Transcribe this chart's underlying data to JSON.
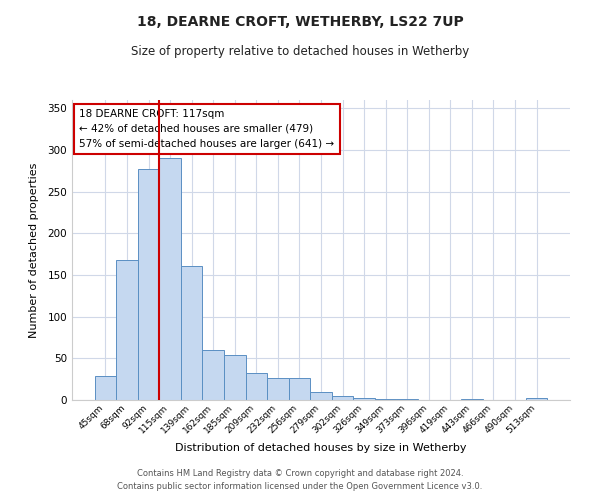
{
  "title": "18, DEARNE CROFT, WETHERBY, LS22 7UP",
  "subtitle": "Size of property relative to detached houses in Wetherby",
  "xlabel": "Distribution of detached houses by size in Wetherby",
  "ylabel": "Number of detached properties",
  "bar_labels": [
    "45sqm",
    "68sqm",
    "92sqm",
    "115sqm",
    "139sqm",
    "162sqm",
    "185sqm",
    "209sqm",
    "232sqm",
    "256sqm",
    "279sqm",
    "302sqm",
    "326sqm",
    "349sqm",
    "373sqm",
    "396sqm",
    "419sqm",
    "443sqm",
    "466sqm",
    "490sqm",
    "513sqm"
  ],
  "bar_values": [
    29,
    168,
    277,
    291,
    161,
    60,
    54,
    33,
    27,
    27,
    10,
    5,
    2,
    1,
    1,
    0,
    0,
    1,
    0,
    0,
    2
  ],
  "bar_color": "#c5d8f0",
  "bar_edge_color": "#5a8fc3",
  "vline_x_index": 3,
  "vline_color": "#cc0000",
  "annotation_title": "18 DEARNE CROFT: 117sqm",
  "annotation_line1": "← 42% of detached houses are smaller (479)",
  "annotation_line2": "57% of semi-detached houses are larger (641) →",
  "annotation_box_color": "#ffffff",
  "annotation_box_edge": "#cc0000",
  "ylim": [
    0,
    360
  ],
  "yticks": [
    0,
    50,
    100,
    150,
    200,
    250,
    300,
    350
  ],
  "footer1": "Contains HM Land Registry data © Crown copyright and database right 2024.",
  "footer2": "Contains public sector information licensed under the Open Government Licence v3.0.",
  "bg_color": "#ffffff",
  "grid_color": "#d0d8e8",
  "figsize": [
    6.0,
    5.0
  ],
  "dpi": 100
}
